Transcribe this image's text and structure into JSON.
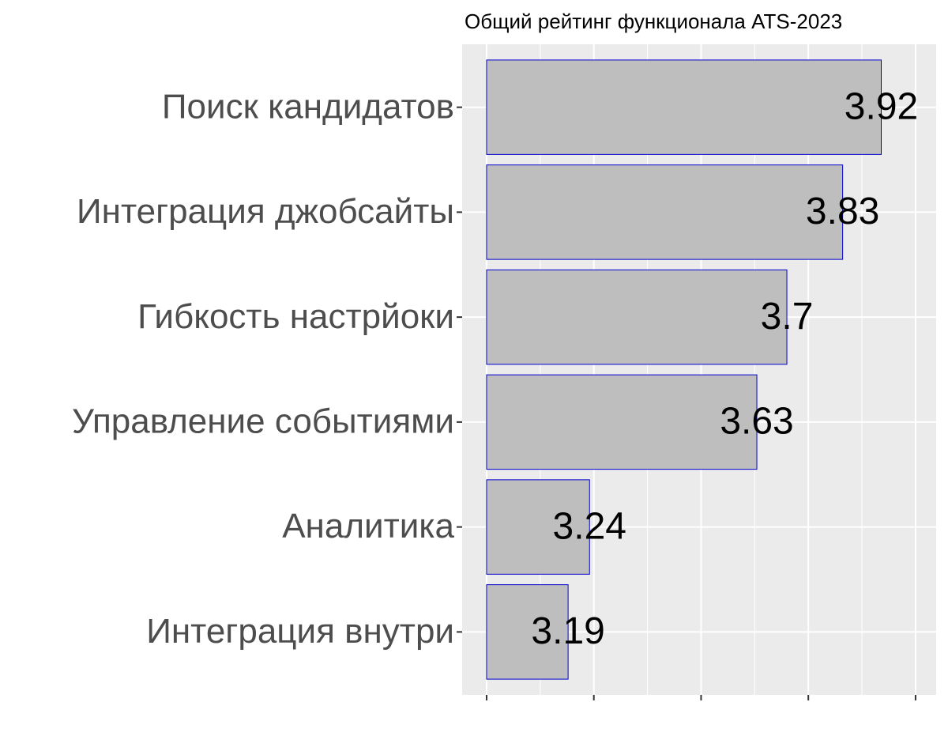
{
  "chart_data": {
    "type": "bar",
    "orientation": "horizontal",
    "title": "Общий рейтинг функционала ATS-2023",
    "categories": [
      "Поиск кандидатов",
      "Интеграция джобсайты",
      "Гибкость настрйоки",
      "Управление событиями",
      "Аналитика",
      "Интеграция внутри"
    ],
    "values": [
      3.92,
      3.83,
      3.7,
      3.63,
      3.24,
      3.19
    ],
    "color": "#bebebe",
    "edge_color": "#0000cd",
    "xlim": [
      2.943,
      4.048
    ],
    "xticks": [
      3,
      3.25,
      3.5,
      3.75,
      4
    ],
    "grid": true
  }
}
